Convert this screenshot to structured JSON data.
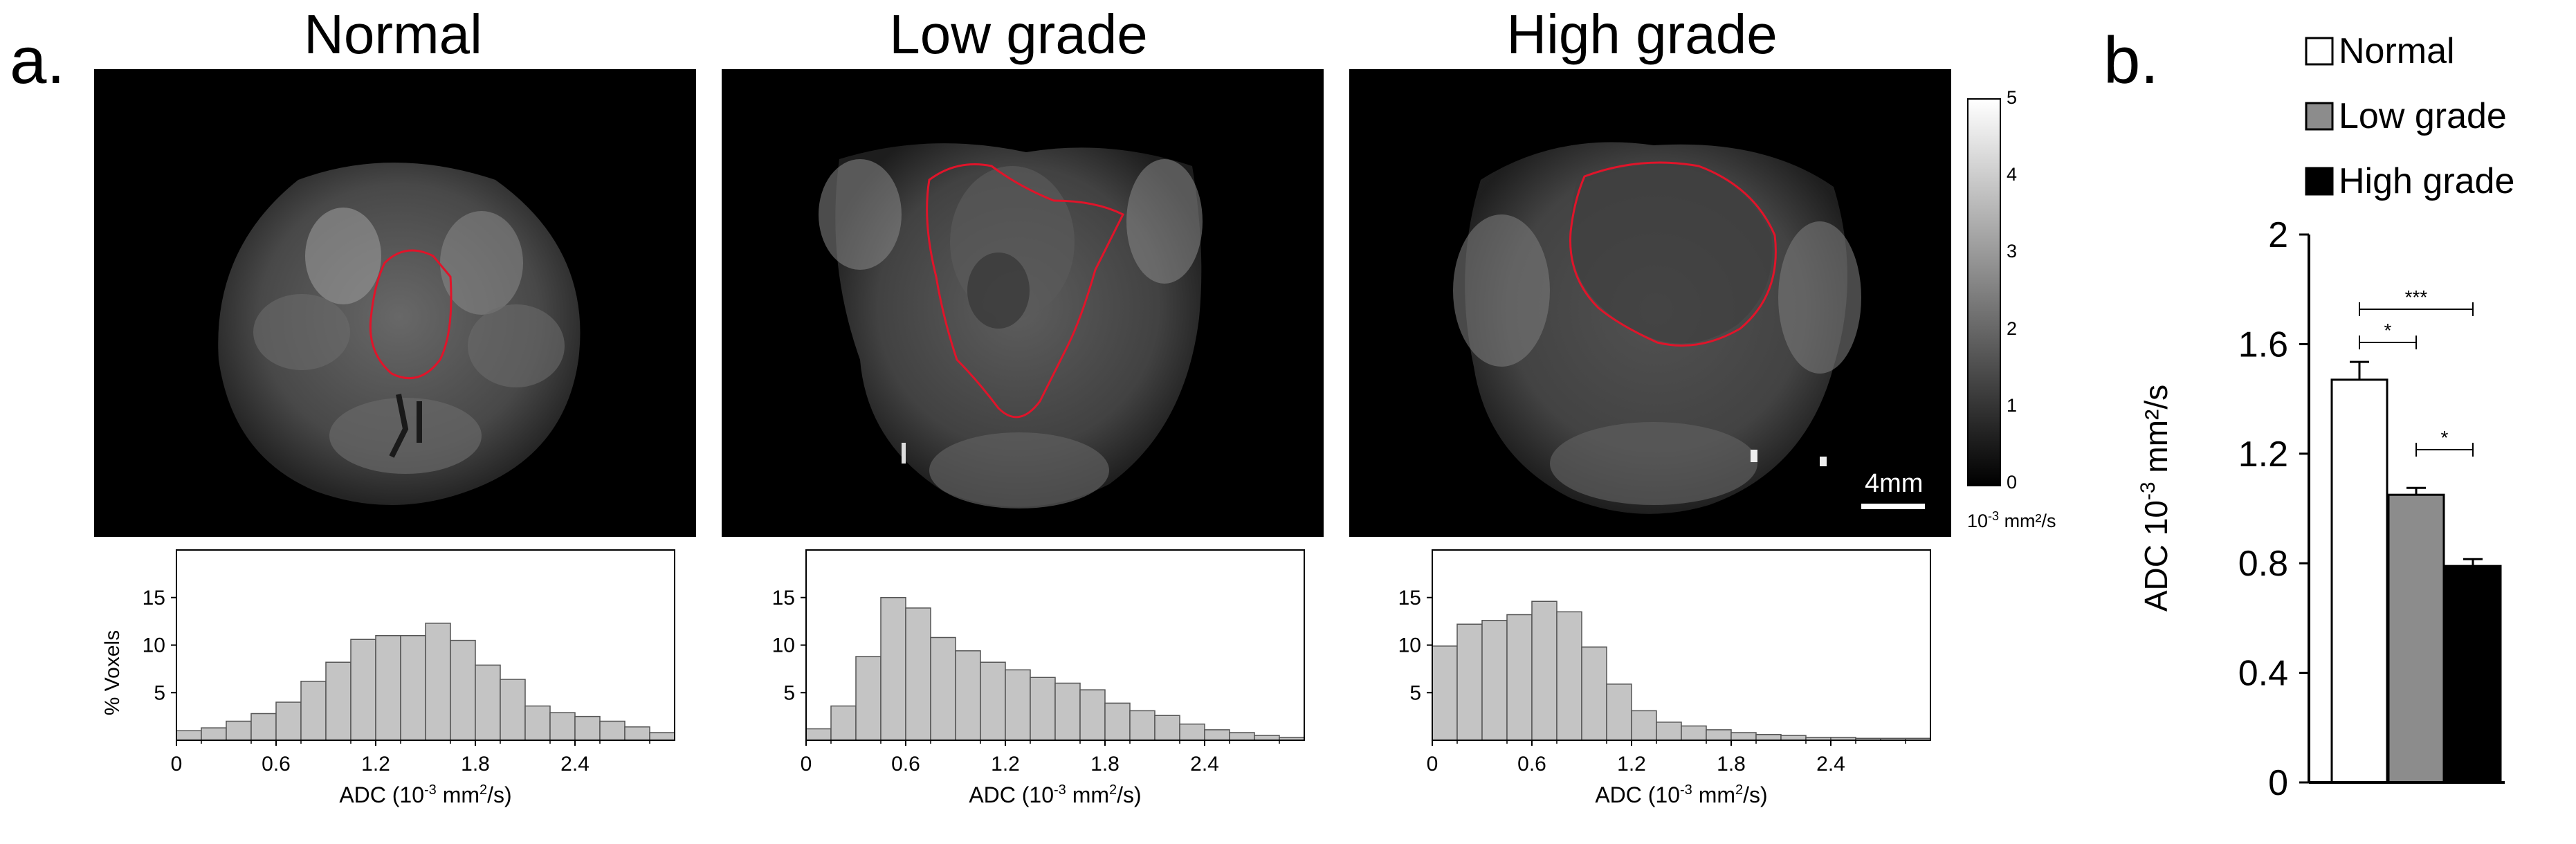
{
  "figure": {
    "panel_a_label": "a.",
    "panel_b_label": "b.",
    "image_titles": [
      "Normal",
      "Low grade",
      "High grade"
    ],
    "scale_bar_label": "4mm",
    "colorbar": {
      "ticks": [
        "5",
        "4",
        "3",
        "2",
        "1",
        "0"
      ],
      "unit_base": "10",
      "unit_exp": "-3",
      "unit_rest": " mm²/s"
    }
  },
  "chart_data": [
    {
      "type": "bar",
      "name": "hist-normal",
      "bin_width": 0.15,
      "x_start": 0,
      "values": [
        1,
        1.3,
        2,
        2.8,
        4,
        6.2,
        8.2,
        10.6,
        11,
        11,
        12.3,
        10.5,
        7.9,
        6.4,
        3.6,
        2.9,
        2.5,
        2,
        1.4,
        0.8
      ],
      "xticks": [
        "0",
        "0.6",
        "1.2",
        "1.8",
        "2.4"
      ],
      "xtick_values": [
        0,
        0.6,
        1.2,
        1.8,
        2.4
      ],
      "yticks": [
        "5",
        "10",
        "15"
      ],
      "ytick_values": [
        5,
        10,
        15
      ],
      "xlim": [
        0,
        3.0
      ],
      "ylim": [
        0,
        20
      ],
      "xlabel": "ADC (10",
      "xlabel_exp": "-3",
      "xlabel_rest": " mm",
      "xlabel_exp2": "2",
      "xlabel_end": "/s)",
      "ylabel": "% Voxels"
    },
    {
      "type": "bar",
      "name": "hist-low-grade",
      "bin_width": 0.15,
      "x_start": 0,
      "values": [
        1.2,
        3.6,
        8.8,
        15,
        13.9,
        10.8,
        9.4,
        8.2,
        7.4,
        6.6,
        6,
        5.3,
        3.9,
        3.1,
        2.6,
        1.7,
        1.1,
        0.8,
        0.5,
        0.3
      ],
      "xticks": [
        "0",
        "0.6",
        "1.2",
        "1.8",
        "2.4"
      ],
      "xtick_values": [
        0,
        0.6,
        1.2,
        1.8,
        2.4
      ],
      "yticks": [
        "5",
        "10",
        "15"
      ],
      "ytick_values": [
        5,
        10,
        15
      ],
      "xlim": [
        0,
        3.0
      ],
      "ylim": [
        0,
        20
      ],
      "xlabel": "ADC (10",
      "xlabel_exp": "-3",
      "xlabel_rest": " mm",
      "xlabel_exp2": "2",
      "xlabel_end": "/s)",
      "ylabel": ""
    },
    {
      "type": "bar",
      "name": "hist-high-grade",
      "bin_width": 0.15,
      "x_start": 0,
      "values": [
        9.9,
        12.2,
        12.6,
        13.2,
        14.6,
        13.5,
        9.8,
        5.9,
        3.1,
        1.9,
        1.5,
        1.1,
        0.8,
        0.6,
        0.5,
        0.3,
        0.3,
        0.2,
        0.2,
        0.2
      ],
      "xticks": [
        "0",
        "0.6",
        "1.2",
        "1.8",
        "2.4"
      ],
      "xtick_values": [
        0,
        0.6,
        1.2,
        1.8,
        2.4
      ],
      "yticks": [
        "5",
        "10",
        "15"
      ],
      "ytick_values": [
        5,
        10,
        15
      ],
      "xlim": [
        0,
        3.0
      ],
      "ylim": [
        0,
        20
      ],
      "xlabel": "ADC (10",
      "xlabel_exp": "-3",
      "xlabel_rest": " mm",
      "xlabel_exp2": "2",
      "xlabel_end": "/s)",
      "ylabel": ""
    },
    {
      "type": "bar",
      "name": "adc-mean-bar",
      "categories": [
        "Normal",
        "Low grade",
        "High grade"
      ],
      "values": [
        1.47,
        1.05,
        0.79
      ],
      "errors": [
        0.065,
        0.025,
        0.025
      ],
      "colors": [
        "#ffffff",
        "#8c8c8c",
        "#000000"
      ],
      "ylim": [
        0,
        2
      ],
      "yticks": [
        "0",
        "0.4",
        "0.8",
        "1.2",
        "1.6",
        "2"
      ],
      "ytick_values": [
        0,
        0.4,
        0.8,
        1.2,
        1.6,
        2
      ],
      "ylabel": "ADC 10",
      "ylabel_exp": "-3",
      "ylabel_rest": " mm²/s",
      "legend": [
        "Normal",
        "Low grade",
        "High grade"
      ],
      "legend_position": "top",
      "significance": [
        {
          "from": 0,
          "to": 1,
          "label": "*"
        },
        {
          "from": 0,
          "to": 2,
          "label": "***"
        },
        {
          "from": 1,
          "to": 2,
          "label": "*"
        }
      ]
    }
  ]
}
